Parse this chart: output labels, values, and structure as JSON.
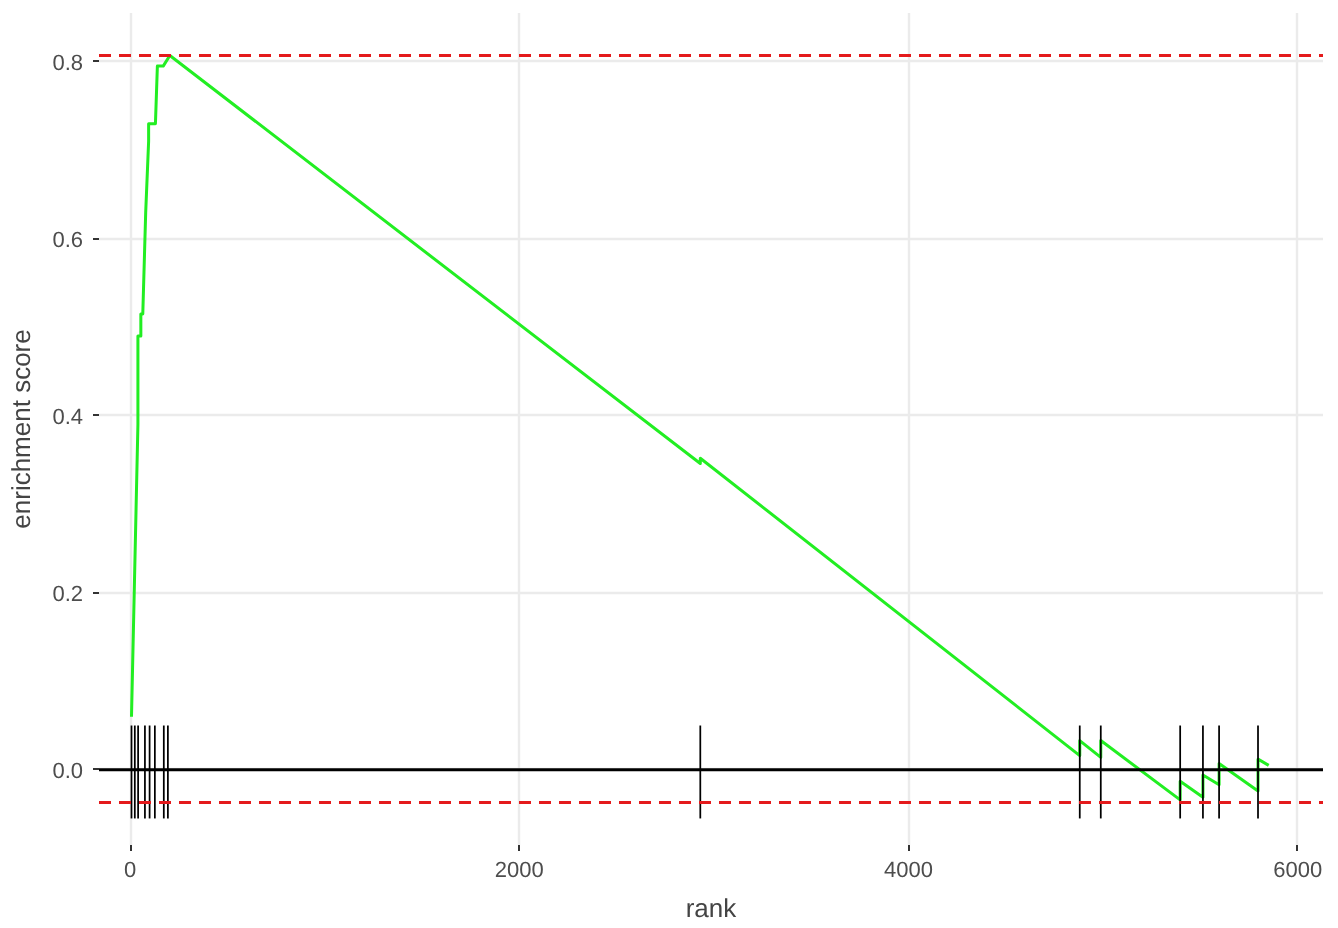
{
  "chart_data": {
    "type": "line",
    "xlabel": "rank",
    "ylabel": "enrichment score",
    "xlim": [
      -160,
      6130
    ],
    "ylim": [
      -0.085,
      0.855
    ],
    "xticks": [
      0,
      2000,
      4000,
      6000
    ],
    "yticks": [
      {
        "value": 0,
        "label": "0.0"
      },
      {
        "value": 0.2,
        "label": "0.2"
      },
      {
        "value": 0.4,
        "label": "0.4"
      },
      {
        "value": 0.6,
        "label": "0.6"
      },
      {
        "value": 0.8,
        "label": "0.8"
      }
    ],
    "grid": true,
    "series": [
      {
        "color": "#22ee22",
        "x": [
          7,
          40,
          40,
          55,
          55,
          65,
          80,
          95,
          95,
          130,
          140,
          170,
          204,
          2930,
          2930,
          4880,
          4880,
          4988,
          4988,
          5396,
          5396,
          5513,
          5513,
          5596,
          5596,
          5796,
          5796,
          5851
        ],
        "values": [
          0.06,
          0.39,
          0.49,
          0.49,
          0.515,
          0.515,
          0.63,
          0.71,
          0.73,
          0.73,
          0.795,
          0.795,
          0.807,
          0.346,
          0.352,
          0.016,
          0.033,
          0.014,
          0.033,
          -0.034,
          -0.013,
          -0.031,
          -0.006,
          -0.017,
          0.007,
          -0.024,
          0.012,
          0.005
        ]
      },
      {
        "type": "bar",
        "color": "#000000",
        "x": [
          7,
          24,
          41,
          76,
          100,
          127,
          173,
          194,
          2930,
          4880,
          4988,
          5396,
          5513,
          5596,
          5796
        ],
        "base": [
          -0.055,
          -0.055,
          -0.055,
          -0.055,
          -0.055,
          -0.055,
          -0.055,
          -0.055,
          -0.055,
          -0.055,
          -0.055,
          -0.055,
          -0.055,
          -0.055,
          -0.055
        ],
        "values": [
          0.105,
          0.105,
          0.105,
          0.105,
          0.105,
          0.105,
          0.105,
          0.105,
          0.105,
          0.105,
          0.105,
          0.105,
          0.105,
          0.105,
          0.105
        ]
      }
    ],
    "ref_lines": [
      {
        "axis": "y",
        "value": 0,
        "color": "#000000",
        "line_style": "solid"
      },
      {
        "axis": "y",
        "value": 0.807,
        "color": "#e41a1c",
        "line_style": "dashed"
      },
      {
        "axis": "y",
        "value": -0.037,
        "color": "#e41a1c",
        "line_style": "dashed"
      }
    ]
  }
}
